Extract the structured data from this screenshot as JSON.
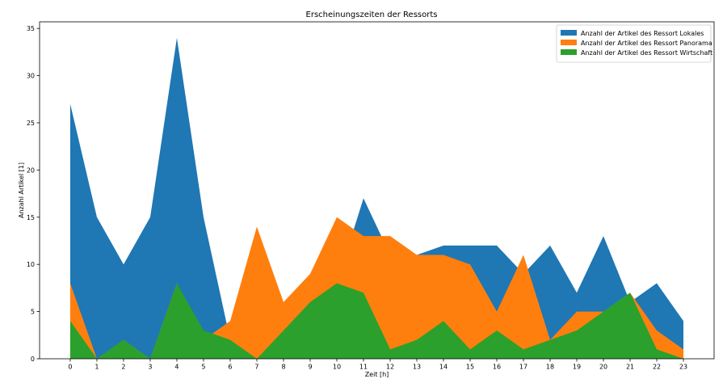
{
  "chart_data": {
    "type": "area",
    "title": "Erscheinungszeiten der Ressorts",
    "xlabel": "Zeit [h]",
    "ylabel": "Anzahl Artikel [1]",
    "x": [
      0,
      1,
      2,
      3,
      4,
      5,
      6,
      7,
      8,
      9,
      10,
      11,
      12,
      13,
      14,
      15,
      16,
      17,
      18,
      19,
      20,
      21,
      22,
      23
    ],
    "xlim": [
      -1.15,
      24.15
    ],
    "ylim": [
      0,
      35.7
    ],
    "yticks": [
      0,
      5,
      10,
      15,
      20,
      25,
      30,
      35
    ],
    "grid": false,
    "legend_position": "top-right",
    "series": [
      {
        "name": "Anzahl der Artikel des Ressort Lokales",
        "color": "#1f77b4",
        "values": [
          27,
          15,
          10,
          15,
          34,
          15,
          2,
          0,
          3,
          6,
          8,
          17,
          11,
          11,
          12,
          12,
          12,
          9,
          12,
          7,
          13,
          6,
          8,
          4
        ]
      },
      {
        "name": "Anzahl der Artikel des Ressort Panorama",
        "color": "#ff7f0e",
        "values": [
          8,
          0,
          2,
          0,
          8,
          2,
          4,
          14,
          6,
          9,
          15,
          13,
          13,
          11,
          11,
          10,
          5,
          11,
          2,
          5,
          5,
          7,
          3,
          1
        ]
      },
      {
        "name": "Anzahl der Artikel des Ressort Wirtschaft",
        "color": "#2ca02c",
        "values": [
          4,
          0,
          2,
          0,
          8,
          3,
          2,
          0,
          3,
          6,
          8,
          7,
          1,
          2,
          4,
          1,
          3,
          1,
          2,
          3,
          5,
          7,
          1,
          0
        ]
      }
    ]
  }
}
